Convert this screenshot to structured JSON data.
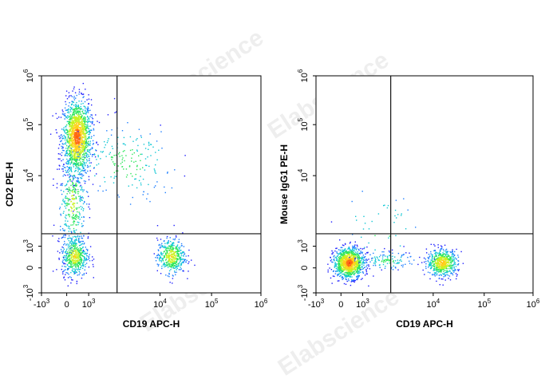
{
  "watermark": "Elabscience",
  "chart_data": [
    {
      "type": "scatter",
      "title": "",
      "xlabel": "CD19 APC-H",
      "ylabel": "CD2 PE-H",
      "x_scale": "biexponential",
      "y_scale": "biexponential",
      "xlim": [
        -1000,
        1000000
      ],
      "ylim": [
        -1000,
        1000000
      ],
      "x_ticks": [
        "-10^3",
        "0",
        "10^3",
        "10^4",
        "10^5",
        "10^6"
      ],
      "y_ticks": [
        "-10^3",
        "0",
        "10^3",
        "10^4",
        "10^5",
        "10^6"
      ],
      "gate": {
        "x": 2500,
        "y": 1500
      },
      "populations": [
        {
          "name": "CD2+ CD19-",
          "x_center": 300,
          "y_center": 15000,
          "density": "high"
        },
        {
          "name": "CD2- CD19-",
          "x_center": 200,
          "y_center": 600,
          "density": "medium"
        },
        {
          "name": "CD2- CD19+",
          "x_center": 20000,
          "y_center": 600,
          "density": "medium"
        }
      ]
    },
    {
      "type": "scatter",
      "title": "",
      "xlabel": "CD19 APC-H",
      "ylabel": "Mouse IgG1 PE-H",
      "x_scale": "biexponential",
      "y_scale": "biexponential",
      "xlim": [
        -1000,
        1000000
      ],
      "ylim": [
        -1000,
        1000000
      ],
      "x_ticks": [
        "-10^3",
        "0",
        "10^3",
        "10^4",
        "10^5",
        "10^6"
      ],
      "y_ticks": [
        "-10^3",
        "0",
        "10^3",
        "10^4",
        "10^5",
        "10^6"
      ],
      "gate": {
        "x": 2500,
        "y": 1500
      },
      "populations": [
        {
          "name": "CD19-",
          "x_center": 100,
          "y_center": 100,
          "density": "high"
        },
        {
          "name": "CD19+",
          "x_center": 20000,
          "y_center": 100,
          "density": "medium"
        }
      ]
    }
  ]
}
